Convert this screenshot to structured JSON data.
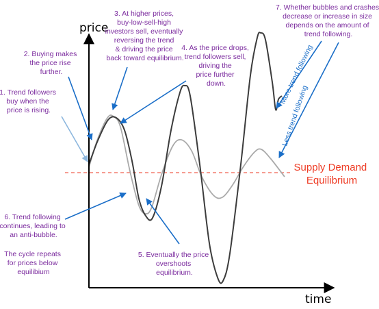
{
  "colors": {
    "annotation_text": "#7b2b9e",
    "annotation_arrow": "#1a6ec8",
    "faded_arrow": "#8db7de",
    "equilibrium": "#ee3b24",
    "strong_curve": "#3c3c3c",
    "weak_curve": "#aaaaaa"
  },
  "axes": {
    "y_label": "price",
    "x_label": "time"
  },
  "equilibrium_label": {
    "line1": "Supply Demand",
    "line2": "Equilibrium"
  },
  "curves": {
    "more_label": "More trend following",
    "less_label": "Less trend following"
  },
  "annotations": {
    "a1": {
      "lines": [
        "1. Trend followers",
        "buy when the",
        "price is rising."
      ]
    },
    "a2": {
      "lines": [
        "2. Buying makes",
        "the price rise",
        "further."
      ]
    },
    "a3": {
      "lines": [
        "3. At higher prices,",
        "buy-low-sell-high",
        "investors sell, eventually",
        "reversing the trend",
        "& driving  the price",
        "back toward equilibrium."
      ]
    },
    "a4": {
      "lines": [
        "4. As the price drops,",
        "trend followers sell,",
        "driving the",
        "price further",
        "down."
      ]
    },
    "a5": {
      "lines": [
        "5. Eventually the price",
        "overshoots",
        "equilibrium."
      ]
    },
    "a6": {
      "lines": [
        "6. Trend following",
        "continues, leading to",
        "an anti-bubble."
      ]
    },
    "a6b": {
      "lines": [
        "The cycle repeats",
        "for prices below",
        "equilibium"
      ]
    },
    "a7": {
      "lines": [
        "7. Whether bubbles and crashes",
        "decrease or increase in size",
        "depends on the amount of",
        "trend following."
      ]
    }
  }
}
